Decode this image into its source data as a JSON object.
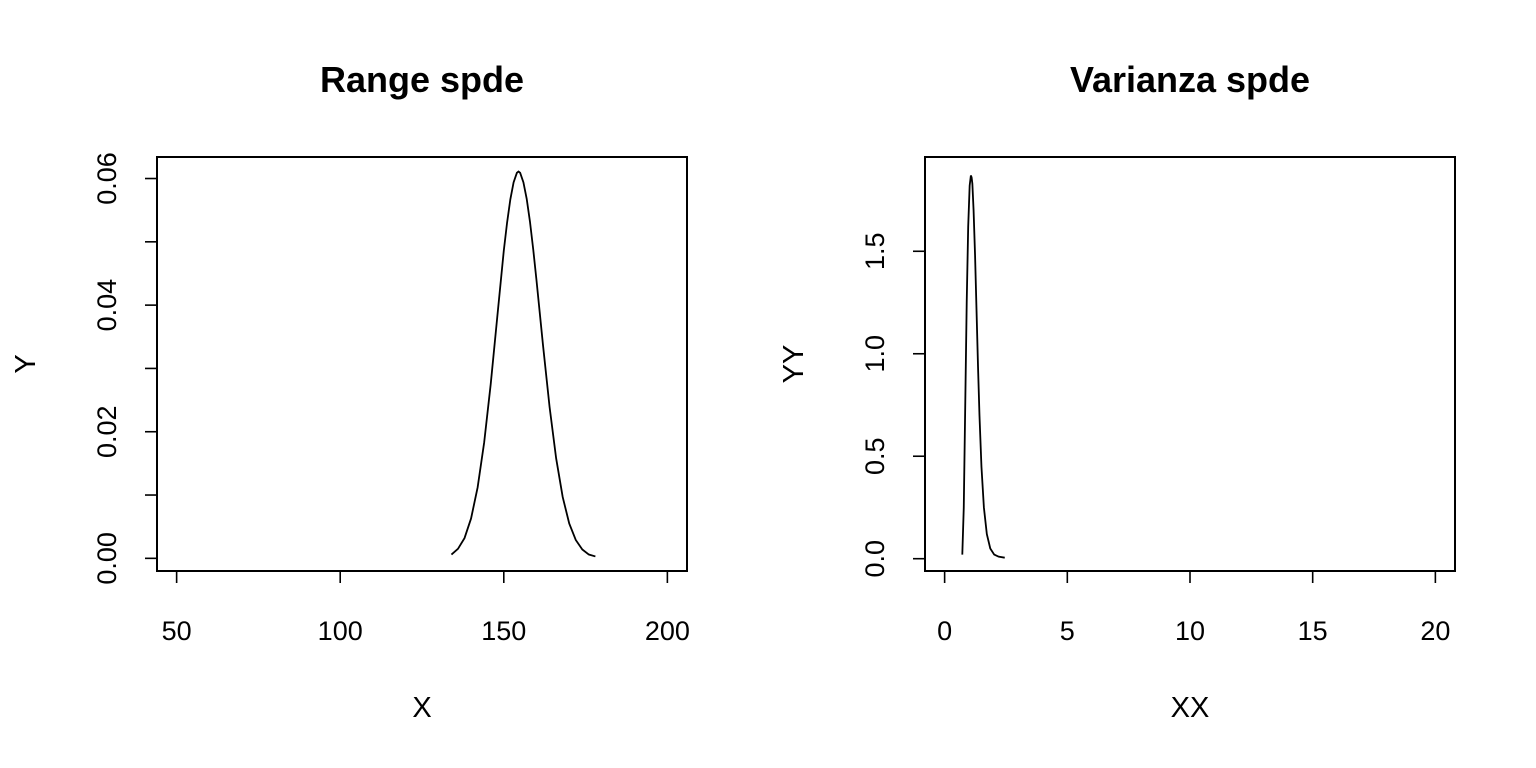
{
  "chart_data": [
    {
      "type": "line",
      "title": "Range spde",
      "xlabel": "X",
      "ylabel": "Y",
      "xlim": [
        44,
        206
      ],
      "ylim": [
        -0.002,
        0.0634
      ],
      "xticks": [
        50,
        100,
        150,
        200
      ],
      "xtick_labels": [
        "50",
        "100",
        "150",
        "200"
      ],
      "yticks": [
        0,
        0.01,
        0.02,
        0.03,
        0.04,
        0.05,
        0.06
      ],
      "ytick_labels": [
        "0.00",
        "",
        "0.02",
        "",
        "0.04",
        "",
        "0.06"
      ],
      "grid": false,
      "series": [
        {
          "x": [
            134.0,
            136.0,
            138.0,
            140.0,
            142.0,
            144.0,
            146.0,
            148.0,
            150.0,
            151.0,
            152.0,
            153.0,
            154.0,
            154.5,
            155.0,
            156.0,
            157.0,
            158.0,
            159.0,
            160.0,
            162.0,
            164.0,
            166.0,
            168.0,
            170.0,
            172.0,
            174.0,
            176.0,
            178.0
          ],
          "y": [
            0.0006,
            0.0015,
            0.0032,
            0.0063,
            0.0112,
            0.0183,
            0.0275,
            0.0381,
            0.0486,
            0.053,
            0.0567,
            0.0594,
            0.0609,
            0.0611,
            0.0609,
            0.0594,
            0.0568,
            0.0532,
            0.0488,
            0.0439,
            0.0336,
            0.0239,
            0.0158,
            0.0097,
            0.0055,
            0.0029,
            0.0014,
            0.0006,
            0.0003
          ]
        }
      ]
    },
    {
      "type": "line",
      "title": "Varianza spde",
      "xlabel": "XX",
      "ylabel": "YY",
      "xlim": [
        -0.8,
        20.8
      ],
      "ylim": [
        -0.06,
        1.96
      ],
      "xticks": [
        0,
        5,
        10,
        15,
        20
      ],
      "xtick_labels": [
        "0",
        "5",
        "10",
        "15",
        "20"
      ],
      "yticks": [
        0,
        0.5,
        1.0,
        1.5
      ],
      "ytick_labels": [
        "0.0",
        "0.5",
        "1.0",
        "1.5"
      ],
      "grid": false,
      "series": [
        {
          "x": [
            0.72,
            0.78,
            0.84,
            0.9,
            0.96,
            1.02,
            1.07,
            1.1,
            1.13,
            1.18,
            1.24,
            1.3,
            1.36,
            1.42,
            1.5,
            1.6,
            1.72,
            1.86,
            2.02,
            2.2,
            2.45
          ],
          "y": [
            0.02,
            0.25,
            0.75,
            1.25,
            1.62,
            1.82,
            1.87,
            1.86,
            1.83,
            1.7,
            1.48,
            1.21,
            0.94,
            0.7,
            0.45,
            0.25,
            0.12,
            0.05,
            0.02,
            0.01,
            0.005
          ]
        }
      ]
    }
  ]
}
